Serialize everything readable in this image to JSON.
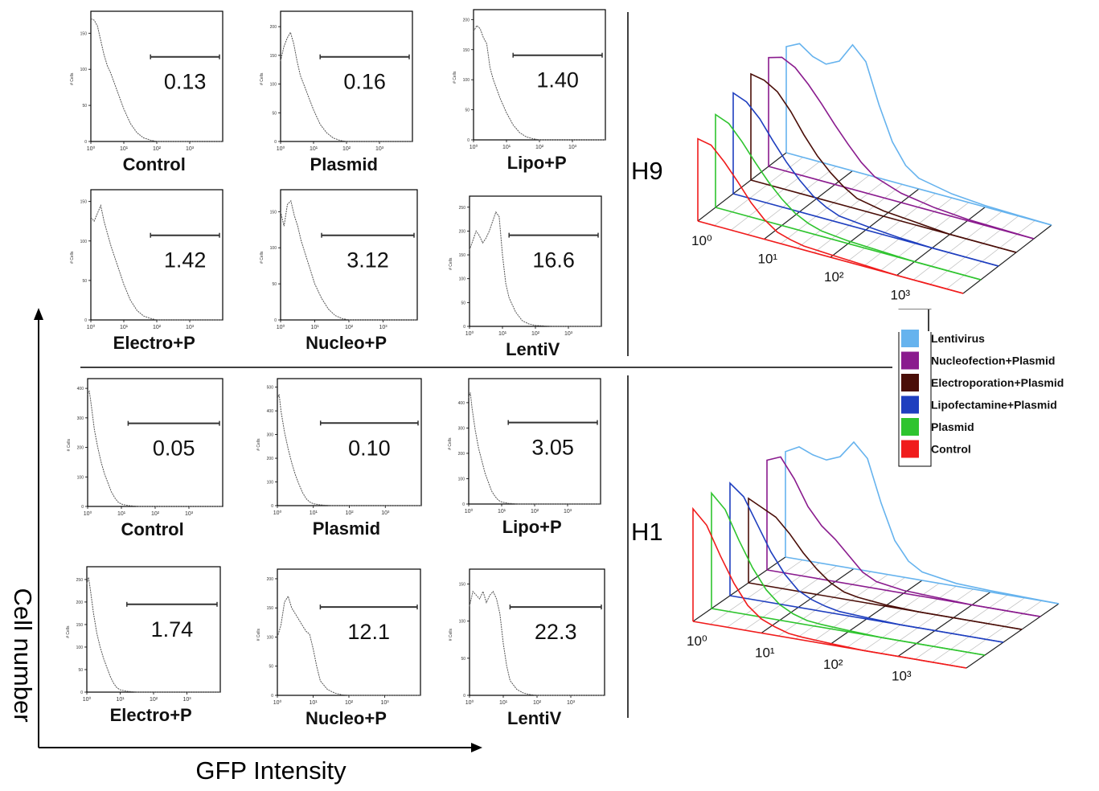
{
  "axis_labels": {
    "y": "Cell number",
    "x": "GFP Intensity"
  },
  "groups": [
    {
      "label": "H9"
    },
    {
      "label": "H1"
    }
  ],
  "legend": {
    "items": [
      {
        "label": "Lentivirus",
        "color": "#66b3ee"
      },
      {
        "label": "Nucleofection+Plasmid",
        "color": "#8a1b8e"
      },
      {
        "label": "Electroporation+Plasmid",
        "color": "#4a0e08"
      },
      {
        "label": "Lipofectamine+Plasmid",
        "color": "#1f3fbf"
      },
      {
        "label": "Plasmid",
        "color": "#2fc42f"
      },
      {
        "label": "Control",
        "color": "#f01c1c"
      }
    ]
  },
  "chart_data": [
    {
      "type": "histogram",
      "group": "H9",
      "label": "Control",
      "gate_value": "0.13",
      "ylim": [
        0,
        175
      ],
      "yticks": [
        "0",
        "50",
        "100",
        "150"
      ],
      "xticks": [
        "10⁰",
        "10¹",
        "10²",
        "10³"
      ],
      "x": [
        0,
        0.1,
        0.2,
        0.3,
        0.4,
        0.5,
        0.6,
        0.8,
        1,
        1.2,
        1.4,
        1.6,
        1.8,
        2,
        2.5,
        3,
        3.5,
        4
      ],
      "y": [
        170,
        168,
        160,
        140,
        120,
        105,
        95,
        70,
        45,
        25,
        12,
        5,
        2,
        0,
        0,
        0,
        0,
        0
      ],
      "gate": [
        1.2,
        3.9
      ]
    },
    {
      "type": "histogram",
      "group": "H9",
      "label": "Plasmid",
      "gate_value": "0.16",
      "ylim": [
        0,
        220
      ],
      "yticks": [
        "0",
        "50",
        "100",
        "150",
        "200"
      ],
      "xticks": [
        "10⁰",
        "10¹",
        "10²",
        "10³"
      ],
      "x": [
        0,
        0.1,
        0.2,
        0.3,
        0.4,
        0.5,
        0.6,
        0.8,
        1,
        1.2,
        1.4,
        1.6,
        1.8,
        2,
        2.5,
        3,
        3.5,
        4
      ],
      "y": [
        140,
        165,
        180,
        190,
        170,
        140,
        115,
        85,
        55,
        30,
        15,
        6,
        2,
        0,
        0,
        0,
        0,
        0
      ],
      "gate": [
        1.2,
        3.9
      ]
    },
    {
      "type": "histogram",
      "group": "H9",
      "label": "Lipo+P",
      "gate_value": "1.40",
      "ylim": [
        0,
        210
      ],
      "yticks": [
        "0",
        "50",
        "100",
        "150",
        "200"
      ],
      "xticks": [
        "10⁰",
        "10¹",
        "10²",
        "10³"
      ],
      "x": [
        0,
        0.1,
        0.2,
        0.3,
        0.4,
        0.5,
        0.6,
        0.8,
        1,
        1.2,
        1.4,
        1.6,
        1.8,
        2,
        2.5,
        3,
        3.5,
        4
      ],
      "y": [
        180,
        190,
        185,
        170,
        160,
        120,
        100,
        70,
        45,
        25,
        12,
        5,
        2,
        0,
        0,
        0,
        0,
        0
      ],
      "gate": [
        1.2,
        3.9
      ]
    },
    {
      "type": "histogram",
      "group": "H9",
      "label": "Electro+P",
      "gate_value": "1.42",
      "ylim": [
        0,
        160
      ],
      "yticks": [
        "0",
        "50",
        "100",
        "150"
      ],
      "xticks": [
        "10⁰",
        "10¹",
        "10²",
        "10³"
      ],
      "x": [
        0,
        0.1,
        0.2,
        0.3,
        0.4,
        0.5,
        0.6,
        0.8,
        1,
        1.2,
        1.4,
        1.6,
        1.8,
        2,
        2.5,
        3,
        3.5,
        4
      ],
      "y": [
        130,
        125,
        135,
        145,
        125,
        110,
        95,
        70,
        45,
        25,
        12,
        5,
        2,
        0,
        0,
        0,
        0,
        0
      ],
      "gate": [
        1.2,
        3.9
      ]
    },
    {
      "type": "histogram",
      "group": "H9",
      "label": "Nucleo+P",
      "gate_value": "3.12",
      "ylim": [
        0,
        175
      ],
      "yticks": [
        "0",
        "50",
        "100",
        "150"
      ],
      "xticks": [
        "10⁰",
        "10¹",
        "10²",
        "10³"
      ],
      "x": [
        0,
        0.1,
        0.2,
        0.3,
        0.4,
        0.5,
        0.6,
        0.8,
        1,
        1.2,
        1.4,
        1.6,
        1.8,
        2,
        2.5,
        3,
        3.5,
        4
      ],
      "y": [
        150,
        130,
        160,
        165,
        145,
        130,
        110,
        80,
        50,
        30,
        15,
        6,
        2,
        0,
        0,
        0,
        0,
        0
      ],
      "gate": [
        1.2,
        3.9
      ]
    },
    {
      "type": "histogram",
      "group": "H9",
      "label": "LentiV",
      "gate_value": "16.6",
      "ylim": [
        0,
        265
      ],
      "yticks": [
        "0",
        "50",
        "100",
        "150",
        "200",
        "250"
      ],
      "xticks": [
        "10⁰",
        "10¹",
        "10²",
        "10³"
      ],
      "x": [
        0,
        0.1,
        0.2,
        0.3,
        0.4,
        0.5,
        0.6,
        0.7,
        0.8,
        0.9,
        1,
        1.1,
        1.2,
        1.4,
        1.6,
        1.8,
        2,
        2.5,
        3,
        4
      ],
      "y": [
        160,
        180,
        200,
        190,
        175,
        185,
        200,
        220,
        240,
        230,
        150,
        90,
        60,
        30,
        12,
        5,
        2,
        0,
        0,
        0
      ],
      "gate": [
        1.2,
        3.9
      ]
    },
    {
      "type": "histogram",
      "group": "H1",
      "label": "Control",
      "gate_value": "0.05",
      "ylim": [
        0,
        420
      ],
      "yticks": [
        "0",
        "100",
        "200",
        "300",
        "400"
      ],
      "xticks": [
        "10⁰",
        "10¹",
        "10²",
        "10³"
      ],
      "x": [
        0,
        0.05,
        0.1,
        0.2,
        0.3,
        0.4,
        0.5,
        0.6,
        0.7,
        0.8,
        0.9,
        1,
        1.2,
        1.5,
        2,
        3,
        4
      ],
      "y": [
        380,
        390,
        350,
        260,
        200,
        150,
        110,
        80,
        50,
        30,
        15,
        8,
        3,
        0,
        0,
        0,
        0
      ],
      "gate": [
        1.2,
        3.9
      ]
    },
    {
      "type": "histogram",
      "group": "H1",
      "label": "Plasmid",
      "gate_value": "0.10",
      "ylim": [
        0,
        520
      ],
      "yticks": [
        "0",
        "100",
        "200",
        "300",
        "400",
        "500"
      ],
      "xticks": [
        "10⁰",
        "10¹",
        "10²",
        "10³"
      ],
      "x": [
        0,
        0.05,
        0.1,
        0.2,
        0.3,
        0.4,
        0.5,
        0.6,
        0.7,
        0.8,
        0.9,
        1,
        1.2,
        1.5,
        2,
        3,
        4
      ],
      "y": [
        450,
        470,
        400,
        310,
        240,
        180,
        130,
        90,
        55,
        30,
        15,
        8,
        3,
        0,
        0,
        0,
        0
      ],
      "gate": [
        1.2,
        3.9
      ]
    },
    {
      "type": "histogram",
      "group": "H1",
      "label": "Lipo+P",
      "gate_value": "3.05",
      "ylim": [
        0,
        480
      ],
      "yticks": [
        "0",
        "100",
        "200",
        "300",
        "400"
      ],
      "xticks": [
        "10⁰",
        "10¹",
        "10²",
        "10³"
      ],
      "x": [
        0,
        0.05,
        0.1,
        0.2,
        0.3,
        0.4,
        0.5,
        0.6,
        0.7,
        0.8,
        0.9,
        1,
        1.2,
        1.5,
        2,
        3,
        4
      ],
      "y": [
        420,
        440,
        380,
        290,
        220,
        170,
        120,
        85,
        50,
        30,
        15,
        8,
        3,
        0,
        0,
        0,
        0
      ],
      "gate": [
        1.2,
        3.9
      ]
    },
    {
      "type": "histogram",
      "group": "H1",
      "label": "Electro+P",
      "gate_value": "1.74",
      "ylim": [
        0,
        270
      ],
      "yticks": [
        "0",
        "50",
        "100",
        "150",
        "200",
        "250"
      ],
      "xticks": [
        "10⁰",
        "10¹",
        "10²",
        "10³"
      ],
      "x": [
        0,
        0.05,
        0.1,
        0.2,
        0.3,
        0.4,
        0.5,
        0.6,
        0.7,
        0.8,
        0.9,
        1,
        1.2,
        1.5,
        2,
        3,
        4
      ],
      "y": [
        240,
        255,
        230,
        175,
        130,
        100,
        75,
        55,
        35,
        20,
        10,
        5,
        2,
        0,
        0,
        0,
        0
      ],
      "gate": [
        1.2,
        3.9
      ]
    },
    {
      "type": "histogram",
      "group": "H1",
      "label": "Nucleo+P",
      "gate_value": "12.1",
      "ylim": [
        0,
        210
      ],
      "yticks": [
        "0",
        "50",
        "100",
        "150",
        "200"
      ],
      "xticks": [
        "10⁰",
        "10¹",
        "10²",
        "10³"
      ],
      "x": [
        0,
        0.1,
        0.2,
        0.3,
        0.4,
        0.5,
        0.6,
        0.7,
        0.8,
        0.9,
        1,
        1.1,
        1.2,
        1.4,
        1.6,
        1.8,
        2,
        2.5,
        3,
        4
      ],
      "y": [
        100,
        120,
        160,
        170,
        150,
        140,
        130,
        120,
        110,
        105,
        80,
        50,
        25,
        10,
        4,
        1,
        0,
        0,
        0,
        0
      ],
      "gate": [
        1.2,
        3.9
      ]
    },
    {
      "type": "histogram",
      "group": "H1",
      "label": "LentiV",
      "gate_value": "22.3",
      "ylim": [
        0,
        165
      ],
      "yticks": [
        "0",
        "50",
        "100",
        "150"
      ],
      "xticks": [
        "10⁰",
        "10¹",
        "10²",
        "10³"
      ],
      "x": [
        0,
        0.1,
        0.2,
        0.3,
        0.4,
        0.5,
        0.6,
        0.7,
        0.8,
        0.9,
        1,
        1.1,
        1.2,
        1.4,
        1.6,
        1.8,
        2,
        2.5,
        3,
        4
      ],
      "y": [
        120,
        140,
        135,
        130,
        140,
        125,
        135,
        140,
        130,
        110,
        70,
        40,
        20,
        8,
        3,
        1,
        0,
        0,
        0,
        0
      ],
      "gate": [
        1.2,
        3.9
      ]
    },
    {
      "type": "overlay_3d",
      "group": "H9",
      "xticks": [
        "10⁰",
        "10¹",
        "10²",
        "10³"
      ],
      "xrange": [
        0,
        4
      ],
      "series": [
        {
          "name": "Control",
          "color": "#f01c1c",
          "x": [
            0,
            0.2,
            0.4,
            0.6,
            0.8,
            1,
            1.2,
            1.4,
            1.6,
            2,
            2.5,
            3,
            4
          ],
          "y": [
            0.62,
            0.6,
            0.5,
            0.38,
            0.25,
            0.15,
            0.08,
            0.05,
            0.03,
            0.02,
            0.01,
            0,
            0
          ]
        },
        {
          "name": "Plasmid",
          "color": "#2fc42f",
          "x": [
            0,
            0.2,
            0.4,
            0.6,
            0.8,
            1,
            1.2,
            1.4,
            1.6,
            2,
            2.5,
            3,
            4
          ],
          "y": [
            0.7,
            0.66,
            0.55,
            0.42,
            0.3,
            0.2,
            0.12,
            0.07,
            0.04,
            0.02,
            0.01,
            0,
            0
          ]
        },
        {
          "name": "Lipofectamine+Plasmid",
          "color": "#1f3fbf",
          "x": [
            0,
            0.2,
            0.4,
            0.6,
            0.8,
            1,
            1.2,
            1.4,
            1.6,
            2,
            2.5,
            3,
            4
          ],
          "y": [
            0.76,
            0.72,
            0.62,
            0.48,
            0.35,
            0.24,
            0.15,
            0.09,
            0.05,
            0.03,
            0.01,
            0,
            0
          ]
        },
        {
          "name": "Electroporation+Plasmid",
          "color": "#4a0e08",
          "x": [
            0,
            0.2,
            0.4,
            0.6,
            0.8,
            1,
            1.2,
            1.4,
            1.6,
            2,
            2.5,
            3,
            4
          ],
          "y": [
            0.8,
            0.78,
            0.72,
            0.6,
            0.45,
            0.32,
            0.22,
            0.14,
            0.08,
            0.04,
            0.02,
            0,
            0
          ]
        },
        {
          "name": "Nucleofection+Plasmid",
          "color": "#8a1b8e",
          "x": [
            0,
            0.2,
            0.4,
            0.6,
            0.8,
            1,
            1.2,
            1.4,
            1.6,
            2,
            2.5,
            3,
            4
          ],
          "y": [
            0.82,
            0.85,
            0.8,
            0.7,
            0.58,
            0.45,
            0.33,
            0.22,
            0.14,
            0.07,
            0.03,
            0.01,
            0
          ]
        },
        {
          "name": "Lentivirus",
          "color": "#66b3ee",
          "x": [
            0,
            0.2,
            0.4,
            0.6,
            0.8,
            1,
            1.2,
            1.4,
            1.6,
            1.8,
            2,
            2.5,
            3,
            4
          ],
          "y": [
            0.8,
            0.85,
            0.78,
            0.75,
            0.8,
            0.95,
            0.85,
            0.55,
            0.3,
            0.15,
            0.08,
            0.03,
            0.01,
            0
          ]
        }
      ]
    },
    {
      "type": "overlay_3d",
      "group": "H1",
      "xticks": [
        "10⁰",
        "10¹",
        "10²",
        "10³"
      ],
      "xrange": [
        0,
        4
      ],
      "series": [
        {
          "name": "Control",
          "color": "#f01c1c",
          "x": [
            0,
            0.2,
            0.4,
            0.6,
            0.8,
            1,
            1.2,
            1.4,
            1.6,
            2,
            2.5,
            3,
            4
          ],
          "y": [
            0.8,
            0.7,
            0.5,
            0.32,
            0.18,
            0.1,
            0.06,
            0.03,
            0.02,
            0.01,
            0,
            0,
            0
          ]
        },
        {
          "name": "Plasmid",
          "color": "#2fc42f",
          "x": [
            0,
            0.2,
            0.4,
            0.6,
            0.8,
            1,
            1.2,
            1.4,
            1.6,
            2,
            2.5,
            3,
            4
          ],
          "y": [
            0.82,
            0.72,
            0.52,
            0.34,
            0.2,
            0.11,
            0.06,
            0.03,
            0.02,
            0.01,
            0,
            0,
            0
          ]
        },
        {
          "name": "Lipofectamine+Plasmid",
          "color": "#1f3fbf",
          "x": [
            0,
            0.2,
            0.4,
            0.6,
            0.8,
            1,
            1.2,
            1.4,
            1.6,
            2,
            2.5,
            3,
            4
          ],
          "y": [
            0.8,
            0.72,
            0.54,
            0.36,
            0.22,
            0.12,
            0.07,
            0.04,
            0.02,
            0.01,
            0,
            0,
            0
          ]
        },
        {
          "name": "Electroporation+Plasmid",
          "color": "#4a0e08",
          "x": [
            0,
            0.2,
            0.4,
            0.6,
            0.8,
            1,
            1.2,
            1.4,
            1.6,
            2,
            2.5,
            3,
            4
          ],
          "y": [
            0.6,
            0.55,
            0.5,
            0.4,
            0.28,
            0.18,
            0.1,
            0.05,
            0.03,
            0.01,
            0,
            0,
            0
          ]
        },
        {
          "name": "Nucleofection+Plasmid",
          "color": "#8a1b8e",
          "x": [
            0,
            0.2,
            0.4,
            0.6,
            0.8,
            1,
            1.2,
            1.4,
            1.6,
            2,
            2.5,
            3,
            4
          ],
          "y": [
            0.78,
            0.82,
            0.68,
            0.5,
            0.38,
            0.3,
            0.2,
            0.1,
            0.05,
            0.02,
            0.01,
            0,
            0
          ]
        },
        {
          "name": "Lentivirus",
          "color": "#66b3ee",
          "x": [
            0,
            0.2,
            0.4,
            0.6,
            0.8,
            1,
            1.2,
            1.4,
            1.6,
            1.8,
            2,
            2.5,
            3,
            4
          ],
          "y": [
            0.75,
            0.8,
            0.76,
            0.74,
            0.78,
            0.9,
            0.8,
            0.5,
            0.25,
            0.12,
            0.06,
            0.02,
            0.01,
            0
          ]
        }
      ]
    }
  ]
}
